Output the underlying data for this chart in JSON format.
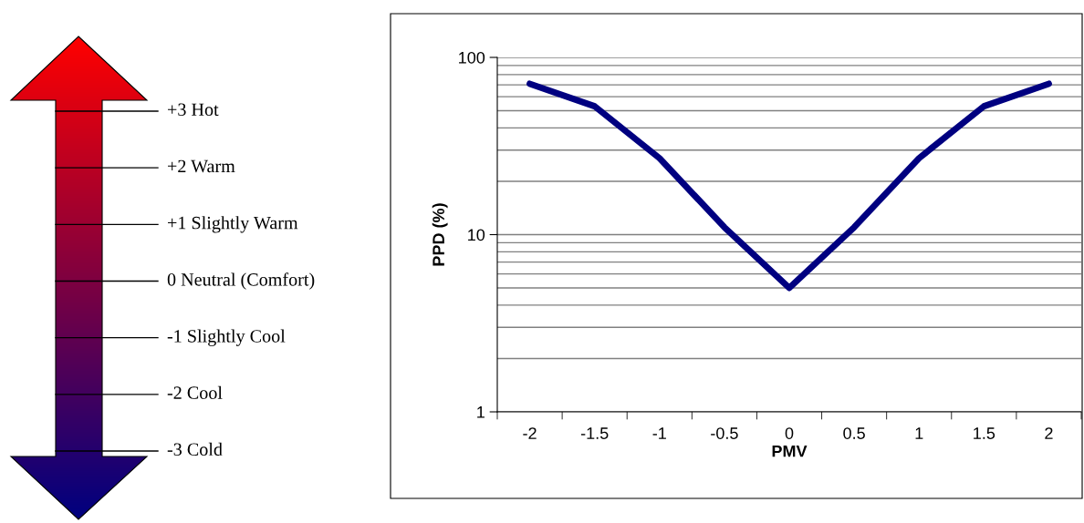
{
  "chart_data": [
    {
      "type": "other",
      "annotations": [
        "+3 Hot",
        "+2 Warm",
        "+1 Slightly Warm",
        "0 Neutral (Comfort)",
        "-1 Slightly Cool",
        "-2 Cool",
        "-3 Cold"
      ]
    },
    {
      "type": "line",
      "categories": [
        "-2",
        "-1.5",
        "-1",
        "-0.5",
        "0",
        "0.5",
        "1",
        "1.5",
        "2"
      ],
      "series": [
        {
          "color": "#000080",
          "values": [
            71,
            53,
            27,
            11,
            5,
            11,
            27,
            53,
            71
          ]
        }
      ],
      "xlabel": "PMV",
      "ylabel": "PPD (%)",
      "log": "y",
      "ylim": [
        1,
        100
      ],
      "yticks": [
        1,
        10,
        100
      ],
      "grid": "y",
      "marker": "none",
      "line_style": "solid"
    }
  ]
}
